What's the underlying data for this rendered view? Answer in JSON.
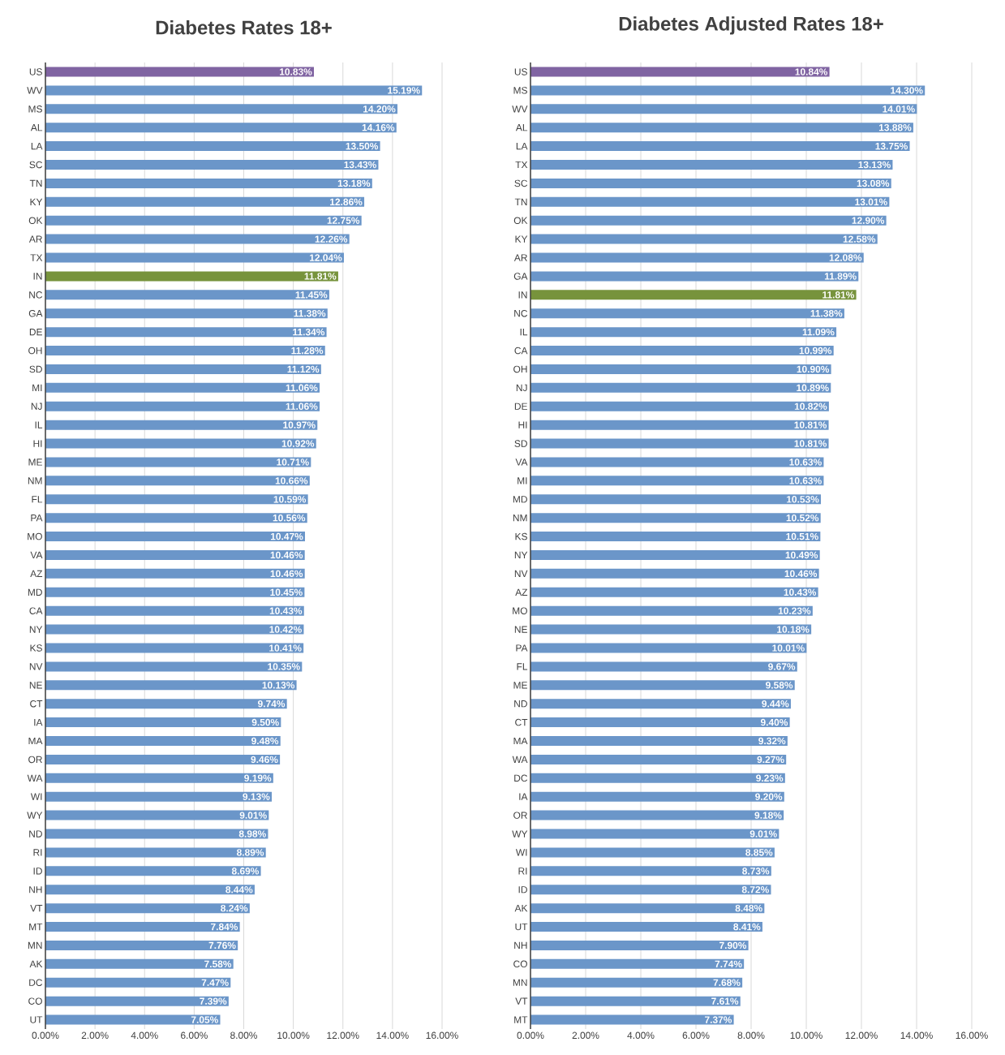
{
  "chart_data": [
    {
      "type": "bar",
      "orientation": "horizontal",
      "title": "Diabetes Rates 18+",
      "categories": [
        "US",
        "WV",
        "MS",
        "AL",
        "LA",
        "SC",
        "TN",
        "KY",
        "OK",
        "AR",
        "TX",
        "IN",
        "NC",
        "GA",
        "DE",
        "OH",
        "SD",
        "MI",
        "NJ",
        "IL",
        "HI",
        "ME",
        "NM",
        "FL",
        "PA",
        "MO",
        "VA",
        "AZ",
        "MD",
        "CA",
        "NY",
        "KS",
        "NV",
        "NE",
        "CT",
        "IA",
        "MA",
        "OR",
        "WA",
        "WI",
        "WY",
        "ND",
        "RI",
        "ID",
        "NH",
        "VT",
        "MT",
        "MN",
        "AK",
        "DC",
        "CO",
        "UT"
      ],
      "values": [
        10.83,
        15.19,
        14.2,
        14.16,
        13.5,
        13.43,
        13.18,
        12.86,
        12.75,
        12.26,
        12.04,
        11.81,
        11.45,
        11.38,
        11.34,
        11.28,
        11.12,
        11.06,
        11.06,
        10.97,
        10.92,
        10.71,
        10.66,
        10.59,
        10.56,
        10.47,
        10.46,
        10.46,
        10.45,
        10.43,
        10.42,
        10.41,
        10.35,
        10.13,
        9.74,
        9.5,
        9.48,
        9.46,
        9.19,
        9.13,
        9.01,
        8.98,
        8.89,
        8.69,
        8.44,
        8.24,
        7.84,
        7.76,
        7.58,
        7.47,
        7.39,
        7.05
      ],
      "value_labels": [
        "10.83%",
        "15.19%",
        "14.20%",
        "14.16%",
        "13.50%",
        "13.43%",
        "13.18%",
        "12.86%",
        "12.75%",
        "12.26%",
        "12.04%",
        "11.81%",
        "11.45%",
        "11.38%",
        "11.34%",
        "11.28%",
        "11.12%",
        "11.06%",
        "11.06%",
        "10.97%",
        "10.92%",
        "10.71%",
        "10.66%",
        "10.59%",
        "10.56%",
        "10.47%",
        "10.46%",
        "10.46%",
        "10.45%",
        "10.43%",
        "10.42%",
        "10.41%",
        "10.35%",
        "10.13%",
        "9.74%",
        "9.50%",
        "9.48%",
        "9.46%",
        "9.19%",
        "9.13%",
        "9.01%",
        "8.98%",
        "8.89%",
        "8.69%",
        "8.44%",
        "8.24%",
        "7.84%",
        "7.76%",
        "7.58%",
        "7.47%",
        "7.39%",
        "7.05%"
      ],
      "colors": [
        "#8064a2",
        "#6b96c9",
        "#6b96c9",
        "#6b96c9",
        "#6b96c9",
        "#6b96c9",
        "#6b96c9",
        "#6b96c9",
        "#6b96c9",
        "#6b96c9",
        "#6b96c9",
        "#77933c",
        "#6b96c9",
        "#6b96c9",
        "#6b96c9",
        "#6b96c9",
        "#6b96c9",
        "#6b96c9",
        "#6b96c9",
        "#6b96c9",
        "#6b96c9",
        "#6b96c9",
        "#6b96c9",
        "#6b96c9",
        "#6b96c9",
        "#6b96c9",
        "#6b96c9",
        "#6b96c9",
        "#6b96c9",
        "#6b96c9",
        "#6b96c9",
        "#6b96c9",
        "#6b96c9",
        "#6b96c9",
        "#6b96c9",
        "#6b96c9",
        "#6b96c9",
        "#6b96c9",
        "#6b96c9",
        "#6b96c9",
        "#6b96c9",
        "#6b96c9",
        "#6b96c9",
        "#6b96c9",
        "#6b96c9",
        "#6b96c9",
        "#6b96c9",
        "#6b96c9",
        "#6b96c9",
        "#6b96c9",
        "#6b96c9",
        "#6b96c9"
      ],
      "xlim": [
        0,
        16
      ],
      "xticks": [
        {
          "value": 0,
          "label": "0.00%"
        },
        {
          "value": 2,
          "label": "2.00%"
        },
        {
          "value": 4,
          "label": "4.00%"
        },
        {
          "value": 6,
          "label": "6.00%"
        },
        {
          "value": 8,
          "label": "8.00%"
        },
        {
          "value": 10,
          "label": "10.00%"
        },
        {
          "value": 12,
          "label": "12.00%"
        },
        {
          "value": 14,
          "label": "14.00%"
        },
        {
          "value": 16,
          "label": "16.00%"
        }
      ],
      "grid": "x"
    },
    {
      "type": "bar",
      "orientation": "horizontal",
      "title": "Diabetes Adjusted Rates 18+",
      "categories": [
        "US",
        "MS",
        "WV",
        "AL",
        "LA",
        "TX",
        "SC",
        "TN",
        "OK",
        "KY",
        "AR",
        "GA",
        "IN",
        "NC",
        "IL",
        "CA",
        "OH",
        "NJ",
        "DE",
        "HI",
        "SD",
        "VA",
        "MI",
        "MD",
        "NM",
        "KS",
        "NY",
        "NV",
        "AZ",
        "MO",
        "NE",
        "PA",
        "FL",
        "ME",
        "ND",
        "CT",
        "MA",
        "WA",
        "DC",
        "IA",
        "OR",
        "WY",
        "WI",
        "RI",
        "ID",
        "AK",
        "UT",
        "NH",
        "CO",
        "MN",
        "VT",
        "MT"
      ],
      "values": [
        10.84,
        14.3,
        14.01,
        13.88,
        13.75,
        13.13,
        13.08,
        13.01,
        12.9,
        12.58,
        12.08,
        11.89,
        11.81,
        11.38,
        11.09,
        10.99,
        10.9,
        10.89,
        10.82,
        10.81,
        10.81,
        10.63,
        10.63,
        10.53,
        10.52,
        10.51,
        10.49,
        10.46,
        10.43,
        10.23,
        10.18,
        10.01,
        9.67,
        9.58,
        9.44,
        9.4,
        9.32,
        9.27,
        9.23,
        9.2,
        9.18,
        9.01,
        8.85,
        8.73,
        8.72,
        8.48,
        8.41,
        7.9,
        7.74,
        7.68,
        7.61,
        7.37
      ],
      "value_labels": [
        "10.84%",
        "14.30%",
        "14.01%",
        "13.88%",
        "13.75%",
        "13.13%",
        "13.08%",
        "13.01%",
        "12.90%",
        "12.58%",
        "12.08%",
        "11.89%",
        "11.81%",
        "11.38%",
        "11.09%",
        "10.99%",
        "10.90%",
        "10.89%",
        "10.82%",
        "10.81%",
        "10.81%",
        "10.63%",
        "10.63%",
        "10.53%",
        "10.52%",
        "10.51%",
        "10.49%",
        "10.46%",
        "10.43%",
        "10.23%",
        "10.18%",
        "10.01%",
        "9.67%",
        "9.58%",
        "9.44%",
        "9.40%",
        "9.32%",
        "9.27%",
        "9.23%",
        "9.20%",
        "9.18%",
        "9.01%",
        "8.85%",
        "8.73%",
        "8.72%",
        "8.48%",
        "8.41%",
        "7.90%",
        "7.74%",
        "7.68%",
        "7.61%",
        "7.37%"
      ],
      "colors": [
        "#8064a2",
        "#6b96c9",
        "#6b96c9",
        "#6b96c9",
        "#6b96c9",
        "#6b96c9",
        "#6b96c9",
        "#6b96c9",
        "#6b96c9",
        "#6b96c9",
        "#6b96c9",
        "#6b96c9",
        "#77933c",
        "#6b96c9",
        "#6b96c9",
        "#6b96c9",
        "#6b96c9",
        "#6b96c9",
        "#6b96c9",
        "#6b96c9",
        "#6b96c9",
        "#6b96c9",
        "#6b96c9",
        "#6b96c9",
        "#6b96c9",
        "#6b96c9",
        "#6b96c9",
        "#6b96c9",
        "#6b96c9",
        "#6b96c9",
        "#6b96c9",
        "#6b96c9",
        "#6b96c9",
        "#6b96c9",
        "#6b96c9",
        "#6b96c9",
        "#6b96c9",
        "#6b96c9",
        "#6b96c9",
        "#6b96c9",
        "#6b96c9",
        "#6b96c9",
        "#6b96c9",
        "#6b96c9",
        "#6b96c9",
        "#6b96c9",
        "#6b96c9",
        "#6b96c9",
        "#6b96c9",
        "#6b96c9",
        "#6b96c9",
        "#6b96c9"
      ],
      "xlim": [
        0,
        16
      ],
      "xticks": [
        {
          "value": 0,
          "label": "0.00%"
        },
        {
          "value": 2,
          "label": "2.00%"
        },
        {
          "value": 4,
          "label": "4.00%"
        },
        {
          "value": 6,
          "label": "6.00%"
        },
        {
          "value": 8,
          "label": "8.00%"
        },
        {
          "value": 10,
          "label": "10.00%"
        },
        {
          "value": 12,
          "label": "12.00%"
        },
        {
          "value": 14,
          "label": "14.00%"
        },
        {
          "value": 16,
          "label": "16.00%"
        }
      ],
      "grid": "x"
    }
  ]
}
